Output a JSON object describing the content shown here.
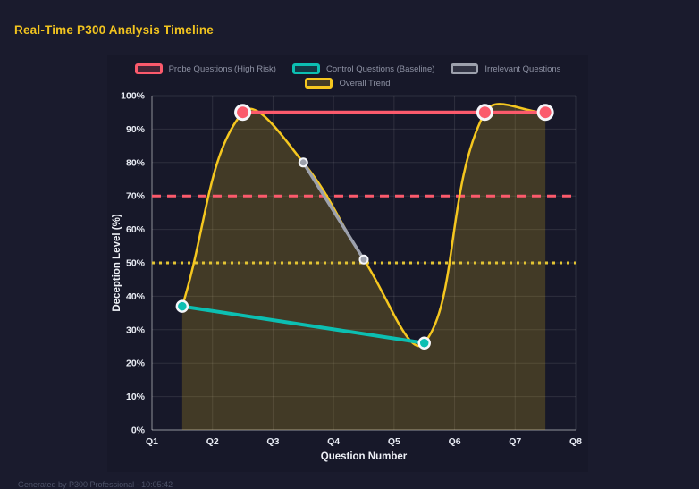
{
  "header": {
    "title": "Real-Time P300 Analysis Timeline",
    "title_color": "#f2c41f"
  },
  "footer": {
    "text": "Generated by P300 Professional - 10:05:42"
  },
  "colors": {
    "page_background": "#1a1b2d",
    "panel_background": "#171829",
    "probe_red": "#fb5a6c",
    "control_teal": "#0cbfb2",
    "irrelevant_gray": "#9da1ad",
    "trend_gold": "#f5c71f",
    "tick_text": "#e9ecf4",
    "legend_text": "#8d91a3"
  },
  "chart_data": {
    "type": "line",
    "title": "Real-Time P300 Analysis Timeline",
    "xlabel": "Question Number",
    "ylabel": "Deception Level (%)",
    "xlim": [
      1,
      8
    ],
    "ylim": [
      0,
      100
    ],
    "grid": true,
    "legend_position": "top",
    "x_tick_values": [
      1,
      2,
      3,
      4,
      5,
      6,
      7,
      8
    ],
    "x_tick_labels": [
      "Q1",
      "Q2",
      "Q3",
      "Q4",
      "Q5",
      "Q6",
      "Q7",
      "Q8"
    ],
    "y_tick_values": [
      0,
      10,
      20,
      30,
      40,
      50,
      60,
      70,
      80,
      90,
      100
    ],
    "y_tick_labels": [
      "0%",
      "10%",
      "20%",
      "30%",
      "40%",
      "50%",
      "60%",
      "70%",
      "80%",
      "90%",
      "100%"
    ],
    "series": [
      {
        "name": "Probe Questions (High Risk)",
        "color": "#fb5a6c",
        "points": [
          [
            2.5,
            95
          ],
          [
            6.5,
            95
          ],
          [
            7.5,
            95
          ]
        ],
        "line_width": 4,
        "point_radius": 8,
        "point_stroke_width": 3,
        "smooth": false
      },
      {
        "name": "Control Questions (Baseline)",
        "color": "#0cbfb2",
        "points": [
          [
            1.5,
            37
          ],
          [
            5.5,
            26
          ]
        ],
        "line_width": 4,
        "point_radius": 6,
        "point_stroke_width": 2.5,
        "smooth": false
      },
      {
        "name": "Irrelevant Questions",
        "color": "#9da1ad",
        "points": [
          [
            3.5,
            80
          ],
          [
            4.5,
            51
          ]
        ],
        "line_width": 3.5,
        "point_radius": 4.5,
        "point_stroke_width": 2,
        "smooth": false
      },
      {
        "name": "Overall Trend",
        "color": "#f5c71f",
        "points": [
          [
            1.5,
            37
          ],
          [
            2.5,
            95
          ],
          [
            3.5,
            80
          ],
          [
            4.5,
            51
          ],
          [
            5.5,
            26
          ],
          [
            6.5,
            95
          ],
          [
            7.5,
            95
          ]
        ],
        "line_width": 2.5,
        "point_radius": 0,
        "point_stroke_width": 0,
        "smooth": true,
        "fill": "rgba(242,196,31,0.20)"
      }
    ],
    "thresholds": [
      {
        "value": 70,
        "color": "#fb5a6c",
        "dash": "10 7",
        "width": 3
      },
      {
        "value": 50,
        "color": "#e3c433",
        "dash": "3 5",
        "width": 3
      }
    ]
  }
}
